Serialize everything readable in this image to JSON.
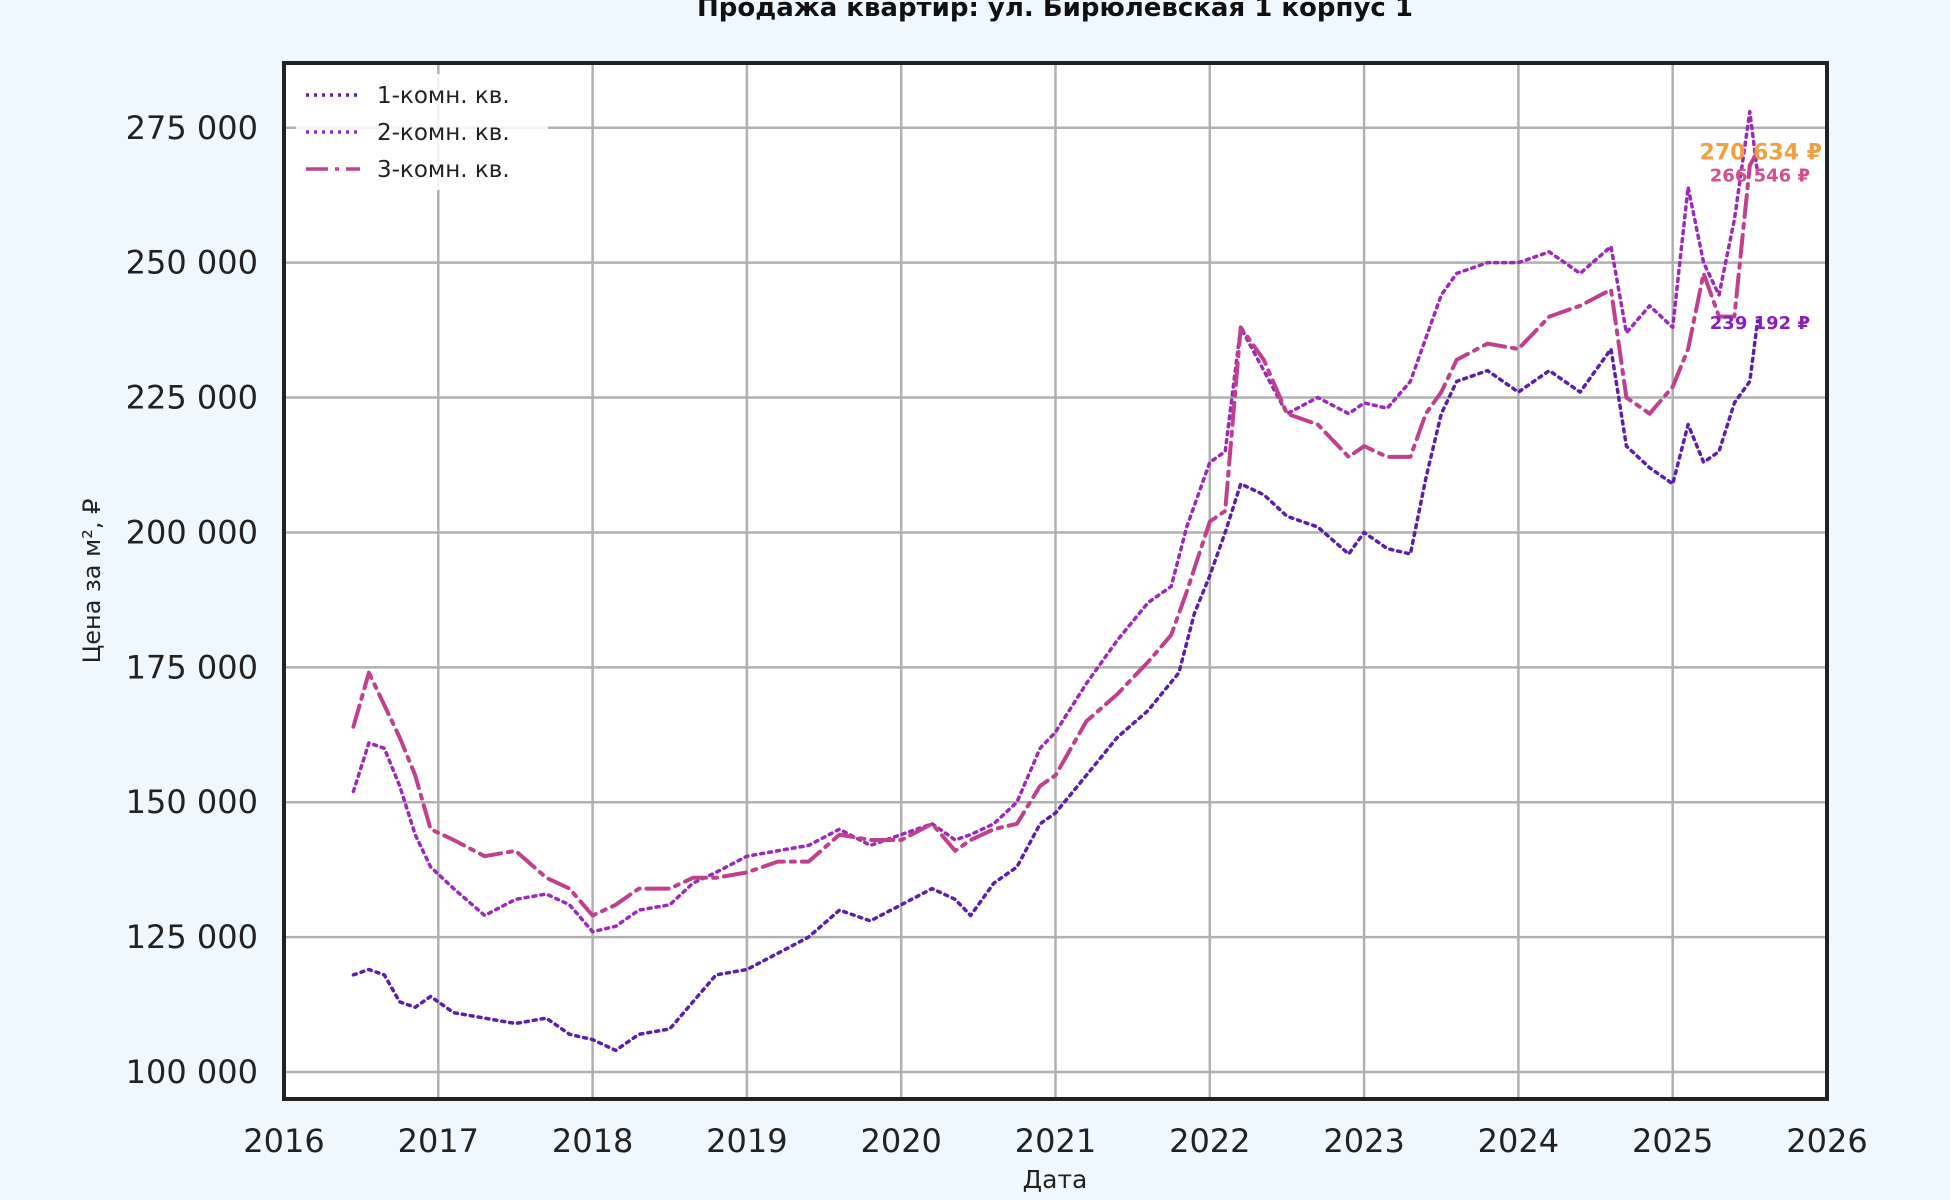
{
  "chart_data": {
    "type": "line",
    "title": "Продажа квартир: ул. Бирюлевская 1 корпус 1",
    "xlabel": "Дата",
    "ylabel": "Цена за м², ₽",
    "xlim": [
      2016,
      2026
    ],
    "ylim": [
      95000,
      287000
    ],
    "x_ticks": [
      "2016",
      "2017",
      "2018",
      "2019",
      "2020",
      "2021",
      "2022",
      "2023",
      "2024",
      "2025",
      "2026"
    ],
    "y_ticks": [
      100000,
      125000,
      150000,
      175000,
      200000,
      225000,
      250000,
      275000
    ],
    "y_tick_labels": [
      "100 000",
      "125 000",
      "150 000",
      "175 000",
      "200 000",
      "225 000",
      "250 000",
      "275 000"
    ],
    "grid": true,
    "legend_position": "top-left",
    "series": [
      {
        "name": "1-комн. кв.",
        "color": "#5b1fa8",
        "dash": "dotted",
        "x": [
          2016.45,
          2016.55,
          2016.65,
          2016.75,
          2016.85,
          2016.95,
          2017.1,
          2017.3,
          2017.5,
          2017.7,
          2017.85,
          2018.0,
          2018.15,
          2018.3,
          2018.5,
          2018.65,
          2018.8,
          2019.0,
          2019.2,
          2019.4,
          2019.6,
          2019.8,
          2020.0,
          2020.2,
          2020.35,
          2020.45,
          2020.6,
          2020.75,
          2020.9,
          2021.0,
          2021.2,
          2021.4,
          2021.6,
          2021.8,
          2021.9,
          2022.0,
          2022.1,
          2022.2,
          2022.35,
          2022.5,
          2022.7,
          2022.9,
          2023.0,
          2023.15,
          2023.3,
          2023.4,
          2023.5,
          2023.6,
          2023.8,
          2024.0,
          2024.2,
          2024.4,
          2024.6,
          2024.7,
          2024.85,
          2025.0,
          2025.1,
          2025.2,
          2025.3,
          2025.4,
          2025.5,
          2025.55
        ],
        "y": [
          118000,
          119000,
          118000,
          113000,
          112000,
          114000,
          111000,
          110000,
          109000,
          110000,
          107000,
          106000,
          104000,
          107000,
          108000,
          113000,
          118000,
          119000,
          122000,
          125000,
          130000,
          128000,
          131000,
          134000,
          132000,
          129000,
          135000,
          138000,
          146000,
          148000,
          155000,
          162000,
          167000,
          174000,
          185000,
          192000,
          200000,
          209000,
          207000,
          203000,
          201000,
          196000,
          200000,
          197000,
          196000,
          210000,
          222000,
          228000,
          230000,
          226000,
          230000,
          226000,
          234000,
          216000,
          212000,
          209000,
          220000,
          213000,
          215000,
          224000,
          228000,
          239192
        ]
      },
      {
        "name": "2-комн. кв.",
        "color": "#9b2ab8",
        "dash": "dotted",
        "x": [
          2016.45,
          2016.55,
          2016.65,
          2016.75,
          2016.85,
          2016.95,
          2017.1,
          2017.3,
          2017.5,
          2017.7,
          2017.85,
          2018.0,
          2018.15,
          2018.3,
          2018.5,
          2018.65,
          2018.8,
          2019.0,
          2019.2,
          2019.4,
          2019.6,
          2019.8,
          2020.0,
          2020.2,
          2020.35,
          2020.45,
          2020.6,
          2020.75,
          2020.9,
          2021.0,
          2021.2,
          2021.4,
          2021.6,
          2021.75,
          2021.85,
          2022.0,
          2022.1,
          2022.2,
          2022.35,
          2022.5,
          2022.7,
          2022.9,
          2023.0,
          2023.15,
          2023.3,
          2023.4,
          2023.5,
          2023.6,
          2023.8,
          2024.0,
          2024.2,
          2024.4,
          2024.6,
          2024.7,
          2024.85,
          2025.0,
          2025.1,
          2025.2,
          2025.3,
          2025.4,
          2025.5,
          2025.55
        ],
        "y": [
          152000,
          161000,
          160000,
          153000,
          144000,
          138000,
          134000,
          129000,
          132000,
          133000,
          131000,
          126000,
          127000,
          130000,
          131000,
          135000,
          137000,
          140000,
          141000,
          142000,
          145000,
          142000,
          144000,
          146000,
          143000,
          144000,
          146000,
          150000,
          160000,
          163000,
          172000,
          180000,
          187000,
          190000,
          201000,
          213000,
          215000,
          238000,
          230000,
          222000,
          225000,
          222000,
          224000,
          223000,
          228000,
          236000,
          244000,
          248000,
          250000,
          250000,
          252000,
          248000,
          253000,
          237000,
          242000,
          238000,
          264000,
          250000,
          244000,
          258000,
          278000,
          266546
        ]
      },
      {
        "name": "3-комн. кв.",
        "color": "#c0408e",
        "dash": "dashdot",
        "x": [
          2016.45,
          2016.55,
          2016.65,
          2016.75,
          2016.85,
          2016.95,
          2017.1,
          2017.3,
          2017.5,
          2017.7,
          2017.85,
          2018.0,
          2018.15,
          2018.3,
          2018.5,
          2018.65,
          2018.8,
          2019.0,
          2019.2,
          2019.4,
          2019.6,
          2019.8,
          2020.0,
          2020.2,
          2020.35,
          2020.45,
          2020.6,
          2020.75,
          2020.9,
          2021.0,
          2021.2,
          2021.4,
          2021.6,
          2021.75,
          2021.85,
          2022.0,
          2022.1,
          2022.2,
          2022.35,
          2022.5,
          2022.7,
          2022.9,
          2023.0,
          2023.15,
          2023.3,
          2023.4,
          2023.5,
          2023.6,
          2023.8,
          2024.0,
          2024.2,
          2024.4,
          2024.6,
          2024.7,
          2024.85,
          2025.0,
          2025.1,
          2025.2,
          2025.3,
          2025.4,
          2025.5,
          2025.55
        ],
        "y": [
          164000,
          174000,
          168000,
          162000,
          155000,
          145000,
          143000,
          140000,
          141000,
          136000,
          134000,
          129000,
          131000,
          134000,
          134000,
          136000,
          136000,
          137000,
          139000,
          139000,
          144000,
          143000,
          143000,
          146000,
          141000,
          143000,
          145000,
          146000,
          153000,
          155000,
          165000,
          170000,
          176000,
          181000,
          189000,
          202000,
          204000,
          238000,
          232000,
          222000,
          220000,
          214000,
          216000,
          214000,
          214000,
          222000,
          226000,
          232000,
          235000,
          234000,
          240000,
          242000,
          245000,
          225000,
          222000,
          227000,
          234000,
          248000,
          240000,
          240000,
          268000,
          270634
        ]
      }
    ],
    "end_labels": [
      {
        "text": "270 634 ₽",
        "color": "#f0a040",
        "value": 270634
      },
      {
        "text": "266 546 ₽",
        "color": "#d4508a",
        "value": 266546
      },
      {
        "text": "239 192 ₽",
        "color": "#8a1fb8",
        "value": 239192
      }
    ]
  }
}
